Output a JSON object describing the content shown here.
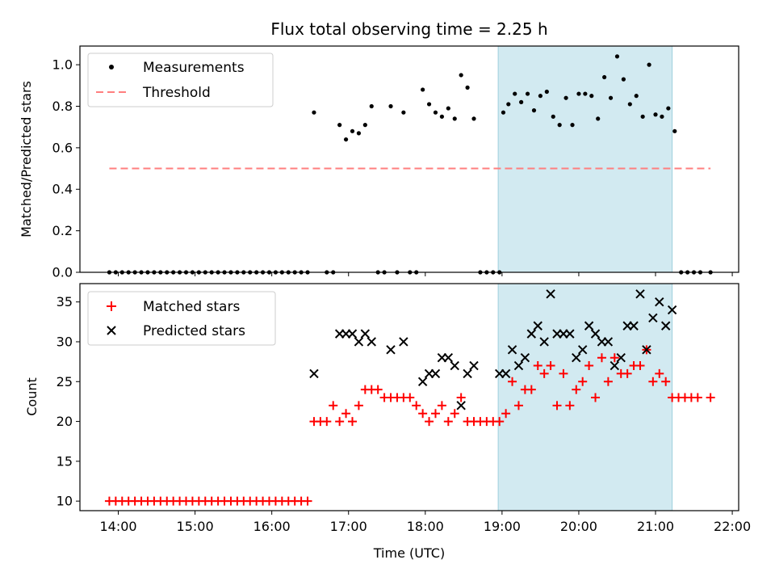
{
  "title": "Flux total observing time = 2.25 h",
  "colors": {
    "measurement": "#000000",
    "threshold": "#ff7f7f",
    "matched": "#ff0000",
    "predicted": "#000000",
    "window": "#add8e6"
  },
  "chart_data": [
    {
      "type": "scatter",
      "title": "Flux total observing time = 2.25 h",
      "xlabel": "",
      "ylabel": "Matched/Predicted stars",
      "xlim": [
        "13:30",
        "22:05"
      ],
      "ylim": [
        0,
        1.09
      ],
      "yticks": [
        "0.0",
        "0.2",
        "0.4",
        "0.6",
        "0.8",
        "1.0"
      ],
      "legend": {
        "placement": "top-left",
        "entries": [
          "Measurements",
          "Threshold"
        ]
      },
      "highlight_window": [
        "18:57",
        "21:13"
      ],
      "threshold": {
        "name": "Threshold",
        "y": 0.5,
        "x": [
          "13:53",
          "21:43"
        ]
      },
      "series": [
        {
          "name": "Measurements",
          "points": [
            [
              "13:53",
              0
            ],
            [
              "13:58",
              0
            ],
            [
              "14:03",
              0
            ],
            [
              "14:08",
              0
            ],
            [
              "14:13",
              0
            ],
            [
              "14:18",
              0
            ],
            [
              "14:23",
              0
            ],
            [
              "14:28",
              0
            ],
            [
              "14:33",
              0
            ],
            [
              "14:38",
              0
            ],
            [
              "14:43",
              0
            ],
            [
              "14:48",
              0
            ],
            [
              "14:53",
              0
            ],
            [
              "14:58",
              0
            ],
            [
              "15:03",
              0
            ],
            [
              "15:08",
              0
            ],
            [
              "15:13",
              0
            ],
            [
              "15:18",
              0
            ],
            [
              "15:23",
              0
            ],
            [
              "15:28",
              0
            ],
            [
              "15:33",
              0
            ],
            [
              "15:38",
              0
            ],
            [
              "15:43",
              0
            ],
            [
              "15:48",
              0
            ],
            [
              "15:53",
              0
            ],
            [
              "15:58",
              0
            ],
            [
              "16:03",
              0
            ],
            [
              "16:08",
              0
            ],
            [
              "16:13",
              0
            ],
            [
              "16:18",
              0
            ],
            [
              "16:23",
              0
            ],
            [
              "16:28",
              0
            ],
            [
              "16:33",
              0.77
            ],
            [
              "16:43",
              0
            ],
            [
              "16:48",
              0
            ],
            [
              "16:53",
              0.71
            ],
            [
              "16:58",
              0.64
            ],
            [
              "17:03",
              0.68
            ],
            [
              "17:08",
              0.67
            ],
            [
              "17:13",
              0.71
            ],
            [
              "17:18",
              0.8
            ],
            [
              "17:23",
              0
            ],
            [
              "17:28",
              0
            ],
            [
              "17:33",
              0.8
            ],
            [
              "17:38",
              0
            ],
            [
              "17:43",
              0.77
            ],
            [
              "17:48",
              0
            ],
            [
              "17:53",
              0
            ],
            [
              "17:58",
              0.88
            ],
            [
              "18:03",
              0.81
            ],
            [
              "18:08",
              0.77
            ],
            [
              "18:13",
              0.75
            ],
            [
              "18:18",
              0.79
            ],
            [
              "18:23",
              0.74
            ],
            [
              "18:28",
              0.95
            ],
            [
              "18:33",
              0.89
            ],
            [
              "18:38",
              0.74
            ],
            [
              "18:43",
              0
            ],
            [
              "18:48",
              0
            ],
            [
              "18:53",
              0
            ],
            [
              "18:58",
              0
            ],
            [
              "19:01",
              0.77
            ],
            [
              "19:05",
              0.81
            ],
            [
              "19:10",
              0.86
            ],
            [
              "19:15",
              0.82
            ],
            [
              "19:20",
              0.86
            ],
            [
              "19:25",
              0.78
            ],
            [
              "19:30",
              0.85
            ],
            [
              "19:35",
              0.87
            ],
            [
              "19:40",
              0.75
            ],
            [
              "19:45",
              0.71
            ],
            [
              "19:50",
              0.84
            ],
            [
              "19:55",
              0.71
            ],
            [
              "20:00",
              0.86
            ],
            [
              "20:05",
              0.86
            ],
            [
              "20:10",
              0.85
            ],
            [
              "20:15",
              0.74
            ],
            [
              "20:20",
              0.94
            ],
            [
              "20:25",
              0.84
            ],
            [
              "20:30",
              1.04
            ],
            [
              "20:35",
              0.93
            ],
            [
              "20:40",
              0.81
            ],
            [
              "20:45",
              0.85
            ],
            [
              "20:50",
              0.75
            ],
            [
              "20:55",
              1.0
            ],
            [
              "21:00",
              0.76
            ],
            [
              "21:05",
              0.75
            ],
            [
              "21:10",
              0.79
            ],
            [
              "21:15",
              0.68
            ],
            [
              "21:20",
              0
            ],
            [
              "21:25",
              0
            ],
            [
              "21:30",
              0
            ],
            [
              "21:35",
              0
            ],
            [
              "21:43",
              0
            ]
          ]
        }
      ]
    },
    {
      "type": "scatter",
      "xlabel": "Time (UTC)",
      "ylabel": "Count",
      "xticks": [
        "14:00",
        "15:00",
        "16:00",
        "17:00",
        "18:00",
        "19:00",
        "20:00",
        "21:00",
        "22:00"
      ],
      "xlim": [
        "13:30",
        "22:05"
      ],
      "ylim": [
        8.8,
        37.3
      ],
      "yticks": [
        "10",
        "15",
        "20",
        "25",
        "30",
        "35"
      ],
      "legend": {
        "placement": "top-left",
        "entries": [
          "Matched stars",
          "Predicted stars"
        ]
      },
      "highlight_window": [
        "18:57",
        "21:13"
      ],
      "series": [
        {
          "name": "Matched stars",
          "points": [
            [
              "13:53",
              10
            ],
            [
              "13:58",
              10
            ],
            [
              "14:03",
              10
            ],
            [
              "14:08",
              10
            ],
            [
              "14:13",
              10
            ],
            [
              "14:18",
              10
            ],
            [
              "14:23",
              10
            ],
            [
              "14:28",
              10
            ],
            [
              "14:33",
              10
            ],
            [
              "14:38",
              10
            ],
            [
              "14:43",
              10
            ],
            [
              "14:48",
              10
            ],
            [
              "14:53",
              10
            ],
            [
              "14:58",
              10
            ],
            [
              "15:03",
              10
            ],
            [
              "15:08",
              10
            ],
            [
              "15:13",
              10
            ],
            [
              "15:18",
              10
            ],
            [
              "15:23",
              10
            ],
            [
              "15:28",
              10
            ],
            [
              "15:33",
              10
            ],
            [
              "15:38",
              10
            ],
            [
              "15:43",
              10
            ],
            [
              "15:48",
              10
            ],
            [
              "15:53",
              10
            ],
            [
              "15:58",
              10
            ],
            [
              "16:03",
              10
            ],
            [
              "16:08",
              10
            ],
            [
              "16:13",
              10
            ],
            [
              "16:18",
              10
            ],
            [
              "16:23",
              10
            ],
            [
              "16:28",
              10
            ],
            [
              "16:33",
              20
            ],
            [
              "16:38",
              20
            ],
            [
              "16:43",
              20
            ],
            [
              "16:48",
              22
            ],
            [
              "16:53",
              20
            ],
            [
              "16:58",
              21
            ],
            [
              "17:03",
              20
            ],
            [
              "17:08",
              22
            ],
            [
              "17:13",
              24
            ],
            [
              "17:18",
              24
            ],
            [
              "17:23",
              24
            ],
            [
              "17:28",
              23
            ],
            [
              "17:33",
              23
            ],
            [
              "17:38",
              23
            ],
            [
              "17:43",
              23
            ],
            [
              "17:48",
              23
            ],
            [
              "17:53",
              22
            ],
            [
              "17:58",
              21
            ],
            [
              "18:03",
              20
            ],
            [
              "18:08",
              21
            ],
            [
              "18:13",
              22
            ],
            [
              "18:18",
              20
            ],
            [
              "18:23",
              21
            ],
            [
              "18:28",
              23
            ],
            [
              "18:33",
              20
            ],
            [
              "18:38",
              20
            ],
            [
              "18:43",
              20
            ],
            [
              "18:48",
              20
            ],
            [
              "18:53",
              20
            ],
            [
              "18:58",
              20
            ],
            [
              "19:03",
              21
            ],
            [
              "19:08",
              25
            ],
            [
              "19:13",
              22
            ],
            [
              "19:18",
              24
            ],
            [
              "19:23",
              24
            ],
            [
              "19:28",
              27
            ],
            [
              "19:33",
              26
            ],
            [
              "19:38",
              27
            ],
            [
              "19:43",
              22
            ],
            [
              "19:48",
              26
            ],
            [
              "19:53",
              22
            ],
            [
              "19:58",
              24
            ],
            [
              "20:03",
              25
            ],
            [
              "20:08",
              27
            ],
            [
              "20:13",
              23
            ],
            [
              "20:18",
              28
            ],
            [
              "20:23",
              25
            ],
            [
              "20:28",
              28
            ],
            [
              "20:33",
              26
            ],
            [
              "20:38",
              26
            ],
            [
              "20:43",
              27
            ],
            [
              "20:48",
              27
            ],
            [
              "20:53",
              29
            ],
            [
              "20:58",
              25
            ],
            [
              "21:03",
              26
            ],
            [
              "21:08",
              25
            ],
            [
              "21:13",
              23
            ],
            [
              "21:18",
              23
            ],
            [
              "21:23",
              23
            ],
            [
              "21:28",
              23
            ],
            [
              "21:33",
              23
            ],
            [
              "21:43",
              23
            ]
          ]
        },
        {
          "name": "Predicted stars",
          "points": [
            [
              "16:33",
              26
            ],
            [
              "16:53",
              31
            ],
            [
              "16:58",
              31
            ],
            [
              "17:03",
              31
            ],
            [
              "17:08",
              30
            ],
            [
              "17:13",
              31
            ],
            [
              "17:18",
              30
            ],
            [
              "17:33",
              29
            ],
            [
              "17:43",
              30
            ],
            [
              "17:58",
              25
            ],
            [
              "18:03",
              26
            ],
            [
              "18:08",
              26
            ],
            [
              "18:13",
              28
            ],
            [
              "18:18",
              28
            ],
            [
              "18:23",
              27
            ],
            [
              "18:28",
              22
            ],
            [
              "18:33",
              26
            ],
            [
              "18:38",
              27
            ],
            [
              "18:58",
              26
            ],
            [
              "19:03",
              26
            ],
            [
              "19:08",
              29
            ],
            [
              "19:13",
              27
            ],
            [
              "19:18",
              28
            ],
            [
              "19:23",
              31
            ],
            [
              "19:28",
              32
            ],
            [
              "19:33",
              30
            ],
            [
              "19:38",
              36
            ],
            [
              "19:43",
              31
            ],
            [
              "19:48",
              31
            ],
            [
              "19:53",
              31
            ],
            [
              "19:58",
              28
            ],
            [
              "20:03",
              29
            ],
            [
              "20:08",
              32
            ],
            [
              "20:13",
              31
            ],
            [
              "20:18",
              30
            ],
            [
              "20:23",
              30
            ],
            [
              "20:28",
              27
            ],
            [
              "20:33",
              28
            ],
            [
              "20:38",
              32
            ],
            [
              "20:43",
              32
            ],
            [
              "20:48",
              36
            ],
            [
              "20:53",
              29
            ],
            [
              "20:58",
              33
            ],
            [
              "21:03",
              35
            ],
            [
              "21:08",
              32
            ],
            [
              "21:13",
              34
            ]
          ]
        }
      ]
    }
  ]
}
